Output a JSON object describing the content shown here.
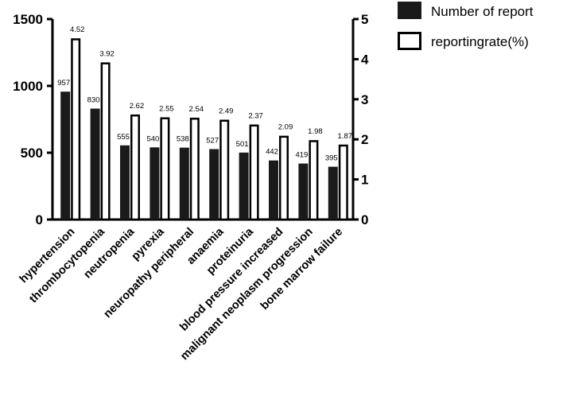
{
  "chart_data": {
    "type": "bar",
    "title": "",
    "xlabel": "",
    "ylabel": "",
    "y2label": "",
    "categories": [
      "hypertension",
      "thrombocytopenia",
      "neutropenia",
      "pyrexia",
      "neuropathy peripheral",
      "anaemia",
      "proteinuria",
      "blood pressure increased",
      "malignant neoplasm progression",
      "bone marrow failure"
    ],
    "ylim": [
      0,
      1500
    ],
    "yticks": [
      0,
      500,
      1000,
      1500
    ],
    "y2lim": [
      0,
      5
    ],
    "y2ticks": [
      0,
      1,
      2,
      3,
      4,
      5
    ],
    "legend_position": "top-right",
    "grid": false,
    "series": [
      {
        "name": "Number of report",
        "axis": "left",
        "color": "#1a1a1a",
        "style": "filled",
        "values": [
          957,
          830,
          555,
          540,
          538,
          527,
          501,
          442,
          419,
          395
        ],
        "labels": [
          "957",
          "830",
          "555",
          "540",
          "538",
          "527",
          "501",
          "442",
          "419",
          "395"
        ]
      },
      {
        "name": "reportingrate(%)",
        "axis": "right",
        "color": "#000000",
        "style": "outline",
        "values": [
          4.52,
          3.92,
          2.62,
          2.55,
          2.54,
          2.49,
          2.37,
          2.09,
          1.98,
          1.87
        ],
        "labels": [
          "4.52",
          "3.92",
          "2.62",
          "2.55",
          "2.54",
          "2.49",
          "2.37",
          "2.09",
          "1.98",
          "1.87"
        ]
      }
    ]
  }
}
